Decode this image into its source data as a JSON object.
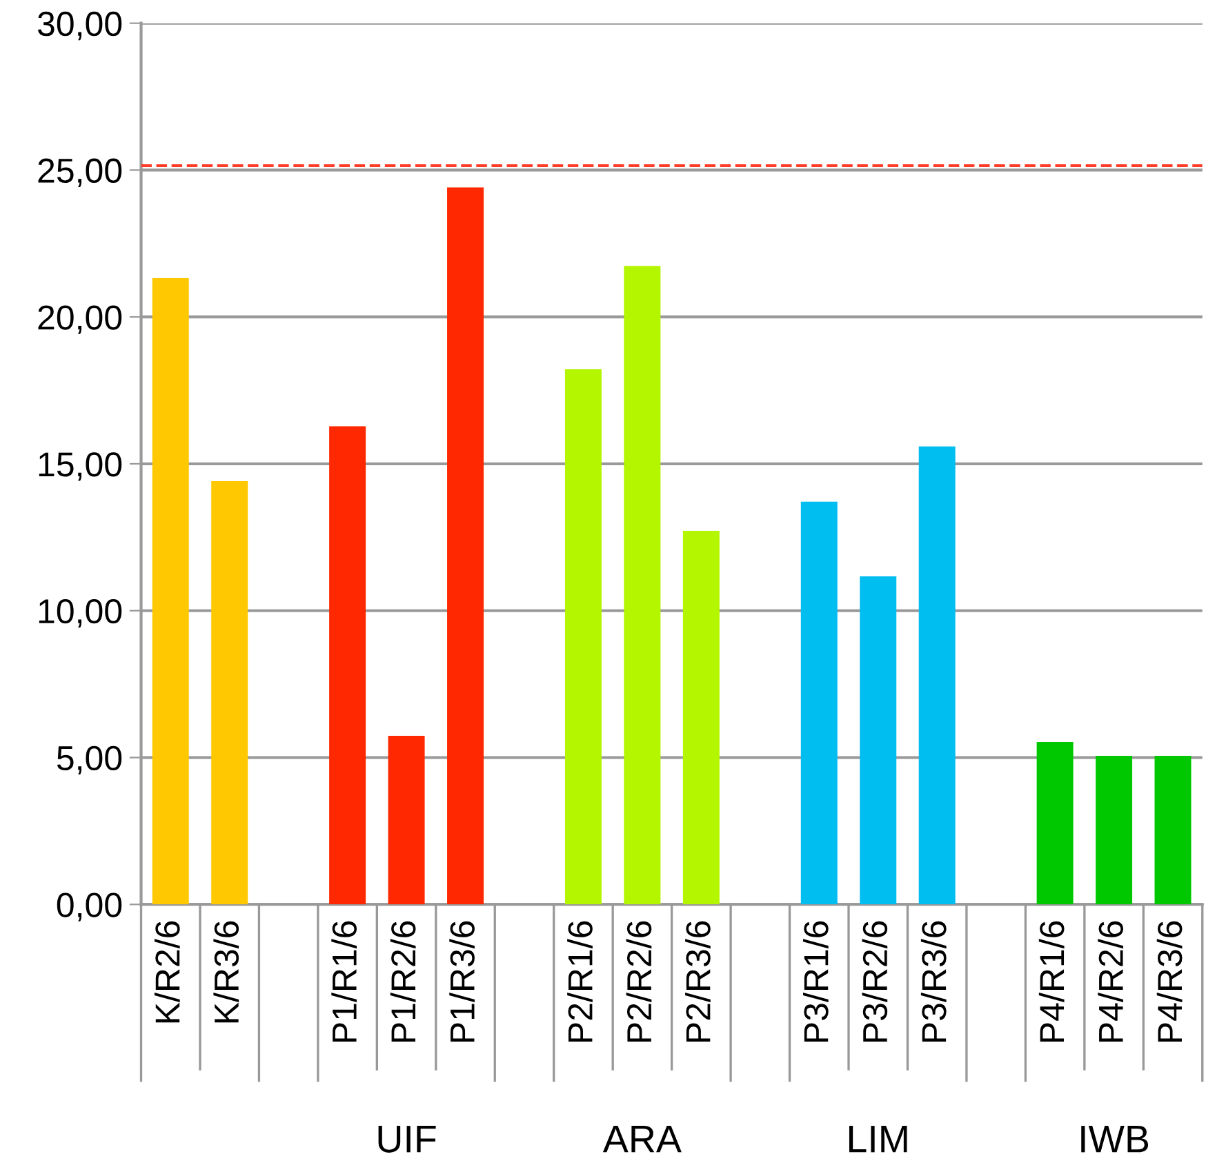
{
  "chart_data": {
    "type": "bar",
    "categories": [
      "K/R2/6",
      "K/R3/6",
      null,
      "P1/R1/6",
      "P1/R2/6",
      "P1/R3/6",
      null,
      "P2/R1/6",
      "P2/R2/6",
      "P2/R3/6",
      null,
      "P3/R1/6",
      "P3/R2/6",
      "P3/R3/6",
      null,
      "P4/R1/6",
      "P4/R2/6",
      "P4/R3/6"
    ],
    "values": [
      21.32,
      14.41,
      null,
      16.28,
      5.74,
      24.41,
      null,
      18.22,
      21.74,
      12.72,
      null,
      13.71,
      11.17,
      15.59,
      null,
      5.53,
      5.06,
      5.06
    ],
    "colors": [
      "#ffc800",
      "#ffc800",
      null,
      "#ff2800",
      "#ff2800",
      "#ff2800",
      null,
      "#b4f500",
      "#b4f500",
      "#b4f500",
      null,
      "#00bef0",
      "#00bef0",
      "#00bef0",
      null,
      "#00c800",
      "#00c800",
      "#00c800"
    ],
    "ylim": [
      0,
      30
    ],
    "yticks": [
      {
        "value": 0,
        "label": "0,00"
      },
      {
        "value": 5,
        "label": "5,00"
      },
      {
        "value": 10,
        "label": "10,00"
      },
      {
        "value": 15,
        "label": "15,00"
      },
      {
        "value": 20,
        "label": "20,00"
      },
      {
        "value": 25,
        "label": "25,00"
      },
      {
        "value": 30,
        "label": "30,00"
      }
    ],
    "grid": "y",
    "ref_lines": [
      {
        "axis": "y",
        "value": 25.15,
        "color": "#ff3c28",
        "line_style": "dashed"
      }
    ],
    "annotations": [
      "UIF",
      "ARA",
      "LIM",
      "IWB"
    ]
  }
}
